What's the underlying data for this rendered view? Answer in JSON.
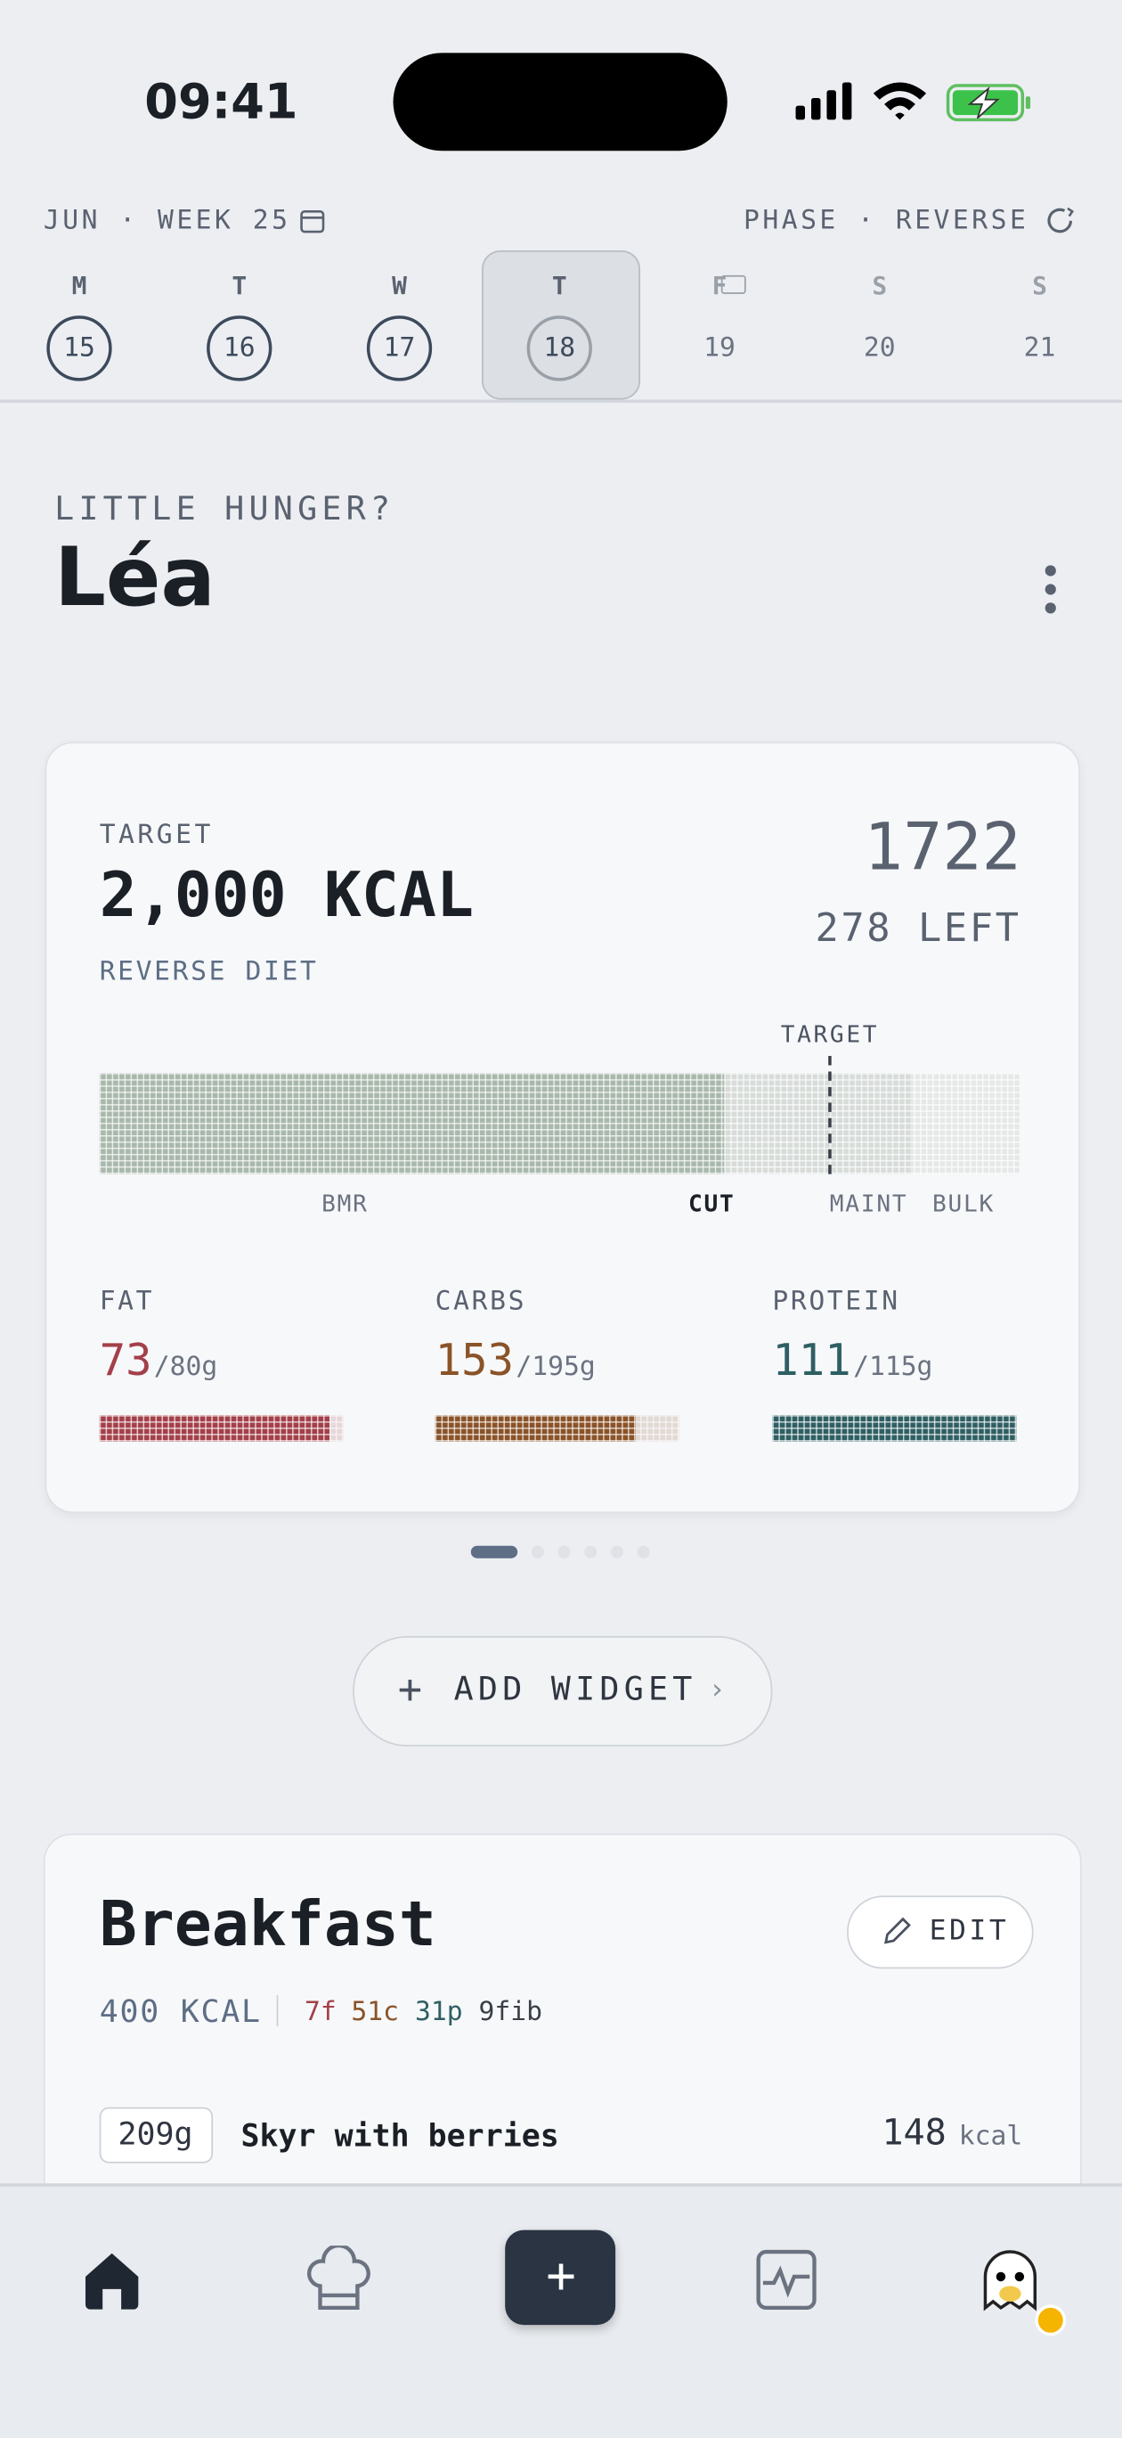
{
  "status": {
    "time": "09:41"
  },
  "header": {
    "week": "JUN · WEEK 25",
    "phase": "PHASE · REVERSE"
  },
  "days": [
    {
      "letter": "M",
      "date": 15
    },
    {
      "letter": "T",
      "date": 16
    },
    {
      "letter": "W",
      "date": 17
    },
    {
      "letter": "T",
      "date": 18
    },
    {
      "letter": "F",
      "date": 19
    },
    {
      "letter": "S",
      "date": 20
    },
    {
      "letter": "S",
      "date": 21
    }
  ],
  "greeting": {
    "prompt": "LITTLE HUNGER?",
    "name": "Léa"
  },
  "target_card": {
    "label": "TARGET",
    "target": "2,000 KCAL",
    "plan": "REVERSE DIET",
    "consumed": 1722,
    "left": "278 LEFT",
    "marker": "TARGET",
    "scale": [
      "BMR",
      "CUT",
      "MAINT",
      "BULK"
    ],
    "macros": [
      {
        "name": "FAT",
        "value": 73,
        "goal": "/80g",
        "color": "#a3404a"
      },
      {
        "name": "CARBS",
        "value": 153,
        "goal": "/195g",
        "color": "#8a5328"
      },
      {
        "name": "PROTEIN",
        "value": 111,
        "goal": "/115g",
        "color": "#2e5f63"
      }
    ]
  },
  "add_widget": "ADD WIDGET",
  "meal": {
    "title": "Breakfast",
    "edit": "EDIT",
    "kcal": "400 KCAL",
    "macros": [
      "7f",
      "51c",
      "31p",
      "9fib"
    ],
    "items": [
      {
        "amount": "209g",
        "name": "Skyr with berries",
        "kcal": 148,
        "unit": "kcal"
      }
    ]
  }
}
